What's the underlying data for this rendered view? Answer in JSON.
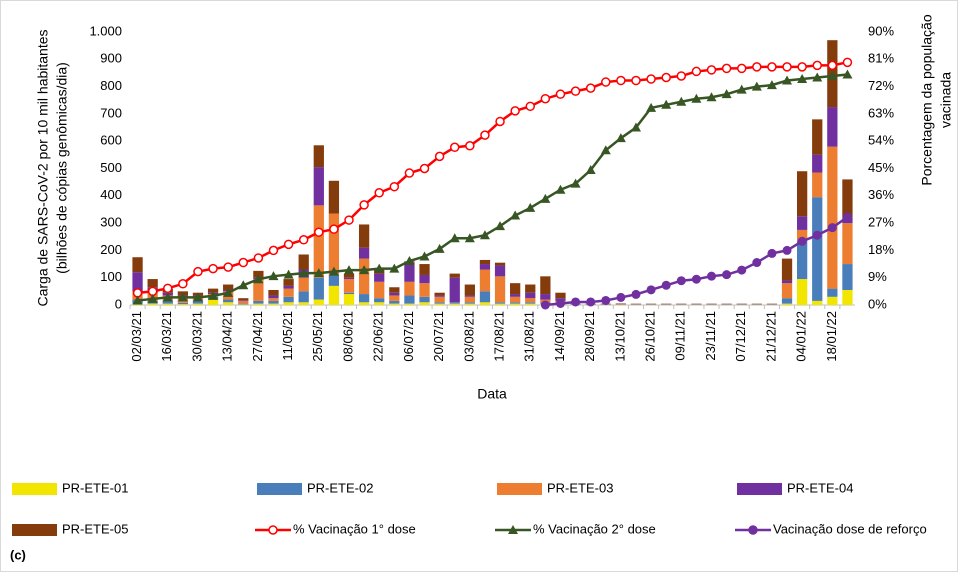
{
  "chart_data": {
    "type": "bar-line",
    "panel_label": "(c)",
    "xlabel": "Data",
    "ylabel": [
      "Carga de SARS-CoV-2 por 10 mil habitantes",
      "(bilhões de cópias genômicas/dia)"
    ],
    "y2label": [
      "Porcentagem da população",
      "vacinada"
    ],
    "stacked": true,
    "grid": false,
    "categories": [
      "02/03/21",
      null,
      "16/03/21",
      null,
      "30/03/21",
      null,
      "13/04/21",
      null,
      "27/04/21",
      null,
      "11/05/21",
      null,
      "25/05/21",
      null,
      "08/06/21",
      null,
      "22/06/21",
      null,
      "06/07/21",
      null,
      "20/07/21",
      null,
      "03/08/21",
      null,
      "17/08/21",
      null,
      "31/08/21",
      null,
      "14/09/21",
      null,
      "28/09/21",
      null,
      "13/10/21",
      null,
      "26/10/21",
      null,
      "09/11/21",
      null,
      "23/11/21",
      null,
      "07/12/21",
      null,
      "21/12/21",
      null,
      "04/01/22",
      null,
      "18/01/22",
      null
    ],
    "ylim": [
      0,
      1000
    ],
    "yticks": [
      0,
      100,
      200,
      300,
      400,
      500,
      600,
      700,
      800,
      900,
      {
        "value": 1000,
        "label": "1.000"
      }
    ],
    "y2lim": [
      0,
      90
    ],
    "y2ticks": [
      {
        "value": 0,
        "label": "0%"
      },
      {
        "value": 9,
        "label": "9%"
      },
      {
        "value": 18,
        "label": "18%"
      },
      {
        "value": 27,
        "label": "27%"
      },
      {
        "value": 36,
        "label": "36%"
      },
      {
        "value": 45,
        "label": "45%"
      },
      {
        "value": 54,
        "label": "54%"
      },
      {
        "value": 63,
        "label": "63%"
      },
      {
        "value": 72,
        "label": "72%"
      },
      {
        "value": 81,
        "label": "81%"
      },
      {
        "value": 90,
        "label": "90%"
      }
    ],
    "series": [
      {
        "name": "PR-ETE-01",
        "type": "bar",
        "color": "#f2e600",
        "values": [
          5,
          5,
          5,
          3,
          5,
          20,
          10,
          2,
          5,
          5,
          10,
          10,
          20,
          70,
          40,
          10,
          10,
          5,
          5,
          10,
          5,
          5,
          5,
          10,
          5,
          5,
          5,
          5,
          2,
          1,
          1,
          1,
          1,
          1,
          1,
          1,
          1,
          1,
          1,
          1,
          1,
          1,
          1,
          5,
          95,
          15,
          30,
          55
        ]
      },
      {
        "name": "PR-ETE-02",
        "type": "bar",
        "color": "#4a7ebb",
        "values": [
          15,
          10,
          10,
          5,
          10,
          10,
          10,
          3,
          10,
          10,
          20,
          40,
          80,
          40,
          5,
          30,
          15,
          10,
          30,
          20,
          5,
          5,
          5,
          40,
          5,
          5,
          5,
          5,
          3,
          1,
          1,
          1,
          1,
          1,
          1,
          1,
          1,
          1,
          1,
          1,
          1,
          1,
          1,
          20,
          140,
          380,
          30,
          95
        ]
      },
      {
        "name": "PR-ETE-03",
        "type": "bar",
        "color": "#ed7d31",
        "values": [
          30,
          30,
          20,
          20,
          15,
          10,
          30,
          10,
          80,
          10,
          30,
          50,
          265,
          225,
          50,
          130,
          60,
          20,
          50,
          50,
          20,
          0,
          20,
          80,
          95,
          20,
          15,
          10,
          10,
          1,
          1,
          1,
          2,
          1,
          1,
          1,
          1,
          1,
          1,
          1,
          1,
          1,
          1,
          55,
          40,
          90,
          520,
          150
        ]
      },
      {
        "name": "PR-ETE-04",
        "type": "bar",
        "color": "#7030a0",
        "values": [
          70,
          20,
          10,
          7,
          5,
          5,
          5,
          3,
          5,
          10,
          10,
          30,
          140,
          0,
          5,
          40,
          30,
          10,
          70,
          30,
          5,
          90,
          5,
          20,
          40,
          10,
          20,
          20,
          10,
          1,
          1,
          1,
          1,
          1,
          1,
          1,
          1,
          1,
          1,
          1,
          1,
          1,
          1,
          10,
          50,
          65,
          145,
          20
        ]
      },
      {
        "name": "PR-ETE-05",
        "type": "bar",
        "color": "#843c0c",
        "values": [
          55,
          30,
          15,
          15,
          10,
          15,
          20,
          7,
          25,
          20,
          25,
          55,
          80,
          120,
          15,
          85,
          20,
          20,
          5,
          40,
          10,
          15,
          40,
          15,
          10,
          40,
          30,
          65,
          20,
          1,
          1,
          1,
          1,
          1,
          1,
          1,
          1,
          1,
          1,
          1,
          1,
          1,
          1,
          80,
          165,
          130,
          245,
          140
        ]
      },
      {
        "name": "% Vacinação 1° dose",
        "type": "line",
        "axis": "y2",
        "color": "#ff0000",
        "marker": "circle-open",
        "values": [
          4,
          4.5,
          5.5,
          7,
          11,
          12,
          12.5,
          14,
          15.5,
          18,
          20,
          21.5,
          24,
          25,
          28,
          33,
          37,
          39,
          43.5,
          45,
          49,
          52,
          52.5,
          56,
          60.5,
          64,
          65.5,
          68,
          69.5,
          70.5,
          71.5,
          73.5,
          74,
          74,
          74.5,
          75,
          75.5,
          77,
          77.5,
          78,
          78,
          78.5,
          78.5,
          78.5,
          78.5,
          79,
          79,
          80
        ]
      },
      {
        "name": "% Vacinação 2° dose",
        "type": "line",
        "axis": "y2",
        "color": "#375623",
        "marker": "triangle",
        "values": [
          1.5,
          2,
          2.5,
          2.5,
          2.5,
          3,
          4,
          6.5,
          8.5,
          9.5,
          10,
          10.5,
          10.5,
          11,
          11.5,
          11.5,
          12,
          12,
          14.5,
          16,
          18.5,
          22,
          22,
          23,
          26,
          29.5,
          32,
          35,
          38,
          40,
          44.5,
          51,
          55,
          58.5,
          65,
          66,
          67,
          68,
          68.5,
          69.5,
          71,
          72,
          72.5,
          74,
          74.5,
          75,
          75.5,
          76
        ]
      },
      {
        "name": "Vacinação dose de reforço",
        "type": "line",
        "axis": "y2",
        "color": "#7030a0",
        "marker": "circle",
        "values": [
          null,
          null,
          null,
          null,
          null,
          null,
          null,
          null,
          null,
          null,
          null,
          null,
          null,
          null,
          null,
          null,
          null,
          null,
          null,
          null,
          null,
          null,
          null,
          null,
          null,
          null,
          null,
          0,
          0.5,
          1,
          1,
          1.5,
          2.5,
          3.5,
          5,
          6.5,
          8,
          8.5,
          9.5,
          10,
          11.5,
          14,
          17,
          18,
          21,
          23,
          25.5,
          29
        ]
      }
    ]
  }
}
